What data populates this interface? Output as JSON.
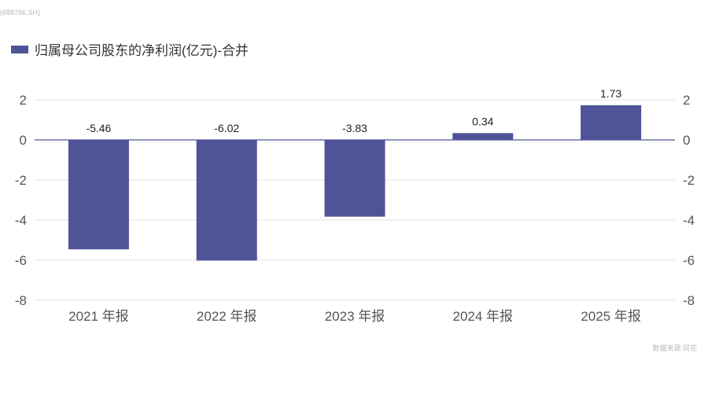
{
  "watermark": "(688796.SH)",
  "source": "数据来源  同花",
  "colors": {
    "bar": "#4e5497",
    "grid": "#e3e3e3",
    "zero_line": "#4e5497"
  },
  "chart_data": {
    "type": "bar",
    "categories": [
      "2021 年报",
      "2022 年报",
      "2023 年报",
      "2024 年报",
      "2025 年报"
    ],
    "series": [
      {
        "name": "归属母公司股东的净利润(亿元)-合并",
        "values": [
          -5.46,
          -6.02,
          -3.83,
          0.34,
          1.73
        ]
      }
    ],
    "data_labels": [
      "-5.46",
      "-6.02",
      "-3.83",
      "0.34",
      "1.73"
    ],
    "ylim": [
      -8,
      2
    ],
    "yticks": [
      2,
      0,
      -2,
      -4,
      -6,
      -8
    ],
    "secondary_yticks": [
      2,
      0,
      -2,
      -4,
      -6,
      -8
    ],
    "grid": true,
    "legend": "top-left"
  }
}
